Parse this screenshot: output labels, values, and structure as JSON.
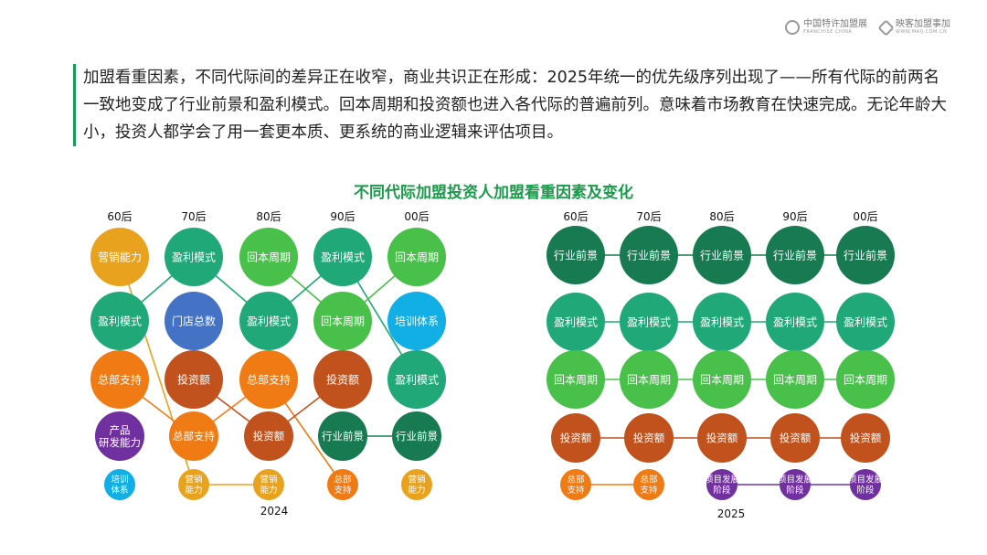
{
  "logos": [
    {
      "name": "中国特许加盟展",
      "sub": "FRANCHISE CHINA"
    },
    {
      "name": "映客加盟事加",
      "sub": "WWW.MAIJ.COM.CN"
    }
  ],
  "intro": "加盟看重因素，不同代际间的差异正在收窄，商业共识正在形成：2025年统一的优先级序列出现了——所有代际的前两名一致地变成了行业前景和盈利模式。回本周期和投资额也进入各代际的普遍前列。意味着市场教育在快速完成。无论年龄大小，投资人都学会了用一套更本质、更系统的商业逻辑来评估项目。",
  "chart_title": "不同代际加盟投资人加盟看重因素及变化",
  "colors": {
    "行业前景": "#177a50",
    "盈利模式": "#20a878",
    "回本周期": "#48c04a",
    "门店总数": "#4472c4",
    "培训体系": "#12aee6",
    "总部支持": "#f07a14",
    "投资额": "#c1521e",
    "产品研发能力": "#7030a0",
    "营销能力": "#e8a21e",
    "项目发展阶段": "#7030a0"
  },
  "panels": [
    {
      "year": "2024",
      "columns": [
        {
          "label": "60后",
          "items": [
            "营销能力",
            "盈利模式",
            "总部支持",
            "产品\n研发能力",
            "培训\n体系"
          ]
        },
        {
          "label": "70后",
          "items": [
            "盈利模式",
            "门店总数",
            "投资额",
            "总部支持",
            "营销\n能力"
          ]
        },
        {
          "label": "80后",
          "items": [
            "回本周期",
            "盈利模式",
            "总部支持",
            "投资额",
            "营销\n能力"
          ]
        },
        {
          "label": "90后",
          "items": [
            "盈利模式",
            "回本周期",
            "投资额",
            "行业前景",
            "总部\n支持"
          ]
        },
        {
          "label": "00后",
          "items": [
            "回本周期",
            "培训体系",
            "盈利模式",
            "行业前景",
            "营销\n能力"
          ]
        }
      ]
    },
    {
      "year": "2025",
      "columns": [
        {
          "label": "60后",
          "items": [
            "行业前景",
            "盈利模式",
            "回本周期",
            "投资额",
            "总部\n支持"
          ]
        },
        {
          "label": "70后",
          "items": [
            "行业前景",
            "盈利模式",
            "回本周期",
            "投资额",
            "总部\n支持"
          ]
        },
        {
          "label": "80后",
          "items": [
            "行业前景",
            "盈利模式",
            "回本周期",
            "投资额",
            "项目发展\n阶段"
          ]
        },
        {
          "label": "90后",
          "items": [
            "行业前景",
            "盈利模式",
            "回本周期",
            "投资额",
            "项目发展\n阶段"
          ]
        },
        {
          "label": "00后",
          "items": [
            "行业前景",
            "盈利模式",
            "回本周期",
            "投资额",
            "项目发展\n阶段"
          ]
        }
      ]
    }
  ]
}
